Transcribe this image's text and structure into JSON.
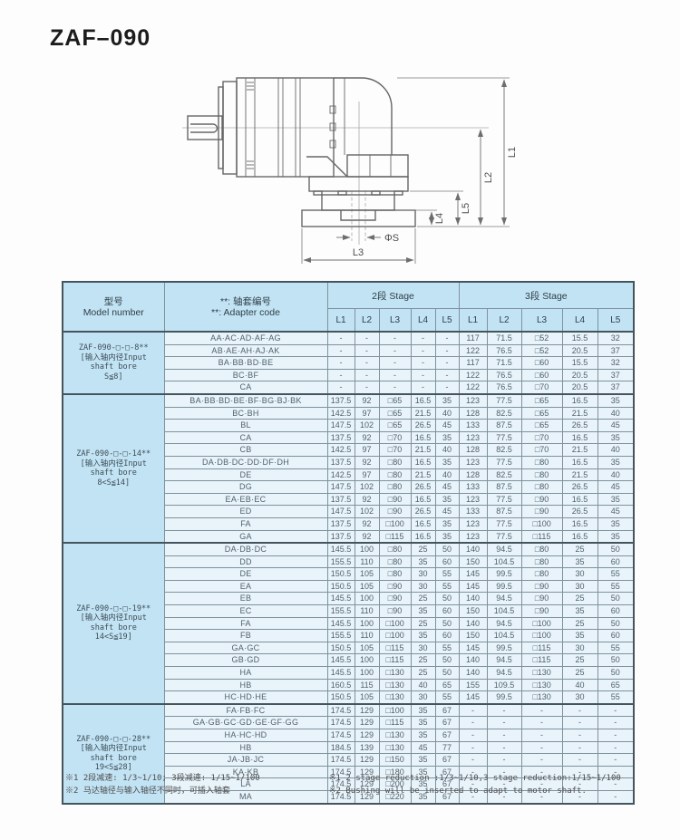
{
  "page": {
    "title": "ZAF–090"
  },
  "drawing": {
    "labels": {
      "l1": "L1",
      "l2": "L2",
      "l3": "L3",
      "l4": "L4",
      "l5": "L5",
      "phi_s": "ΦS"
    }
  },
  "table": {
    "headers": {
      "model_cn": "型号",
      "model_en": "Model number",
      "adapter_cn": "**: 轴套编号",
      "adapter_en": "**: Adapter code",
      "stage2": "2段 Stage",
      "stage3": "3段 Stage",
      "cols": [
        "L1",
        "L2",
        "L3",
        "L4",
        "L5"
      ]
    },
    "groups": [
      {
        "model_lines": [
          "ZAF-090-□-□-8**",
          "[输入轴内径Input",
          "shaft bore",
          "S≦8]"
        ],
        "rows": [
          {
            "code": "AA·AC·AD·AF·AG",
            "s2": [
              "-",
              "-",
              "-",
              "-",
              "-"
            ],
            "s3": [
              "117",
              "71.5",
              "□52",
              "15.5",
              "32"
            ]
          },
          {
            "code": "AB·AE·AH·AJ·AK",
            "s2": [
              "-",
              "-",
              "-",
              "-",
              "-"
            ],
            "s3": [
              "122",
              "76.5",
              "□52",
              "20.5",
              "37"
            ]
          },
          {
            "code": "BA·BB·BD·BE",
            "s2": [
              "-",
              "-",
              "-",
              "-",
              "-"
            ],
            "s3": [
              "117",
              "71.5",
              "□60",
              "15.5",
              "32"
            ]
          },
          {
            "code": "BC·BF",
            "s2": [
              "-",
              "-",
              "-",
              "-",
              "-"
            ],
            "s3": [
              "122",
              "76.5",
              "□60",
              "20.5",
              "37"
            ]
          },
          {
            "code": "CA",
            "s2": [
              "-",
              "-",
              "-",
              "-",
              "-"
            ],
            "s3": [
              "122",
              "76.5",
              "□70",
              "20.5",
              "37"
            ]
          }
        ]
      },
      {
        "model_lines": [
          "ZAF-090-□-□-14**",
          "[输入轴内径Input",
          "shaft bore",
          "8<S≦14]"
        ],
        "rows": [
          {
            "code": "BA·BB·BD·BE·BF·BG·BJ·BK",
            "s2": [
              "137.5",
              "92",
              "□65",
              "16.5",
              "35"
            ],
            "s3": [
              "123",
              "77.5",
              "□65",
              "16.5",
              "35"
            ]
          },
          {
            "code": "BC·BH",
            "s2": [
              "142.5",
              "97",
              "□65",
              "21.5",
              "40"
            ],
            "s3": [
              "128",
              "82.5",
              "□65",
              "21.5",
              "40"
            ]
          },
          {
            "code": "BL",
            "s2": [
              "147.5",
              "102",
              "□65",
              "26.5",
              "45"
            ],
            "s3": [
              "133",
              "87.5",
              "□65",
              "26.5",
              "45"
            ]
          },
          {
            "code": "CA",
            "s2": [
              "137.5",
              "92",
              "□70",
              "16.5",
              "35"
            ],
            "s3": [
              "123",
              "77.5",
              "□70",
              "16.5",
              "35"
            ]
          },
          {
            "code": "CB",
            "s2": [
              "142.5",
              "97",
              "□70",
              "21.5",
              "40"
            ],
            "s3": [
              "128",
              "82.5",
              "□70",
              "21.5",
              "40"
            ]
          },
          {
            "code": "DA·DB·DC·DD·DF·DH",
            "s2": [
              "137.5",
              "92",
              "□80",
              "16.5",
              "35"
            ],
            "s3": [
              "123",
              "77.5",
              "□80",
              "16.5",
              "35"
            ]
          },
          {
            "code": "DE",
            "s2": [
              "142.5",
              "97",
              "□80",
              "21.5",
              "40"
            ],
            "s3": [
              "128",
              "82.5",
              "□80",
              "21.5",
              "40"
            ]
          },
          {
            "code": "DG",
            "s2": [
              "147.5",
              "102",
              "□80",
              "26.5",
              "45"
            ],
            "s3": [
              "133",
              "87.5",
              "□80",
              "26.5",
              "45"
            ]
          },
          {
            "code": "EA·EB·EC",
            "s2": [
              "137.5",
              "92",
              "□90",
              "16.5",
              "35"
            ],
            "s3": [
              "123",
              "77.5",
              "□90",
              "16.5",
              "35"
            ]
          },
          {
            "code": "ED",
            "s2": [
              "147.5",
              "102",
              "□90",
              "26.5",
              "45"
            ],
            "s3": [
              "133",
              "87.5",
              "□90",
              "26.5",
              "45"
            ]
          },
          {
            "code": "FA",
            "s2": [
              "137.5",
              "92",
              "□100",
              "16.5",
              "35"
            ],
            "s3": [
              "123",
              "77.5",
              "□100",
              "16.5",
              "35"
            ]
          },
          {
            "code": "GA",
            "s2": [
              "137.5",
              "92",
              "□115",
              "16.5",
              "35"
            ],
            "s3": [
              "123",
              "77.5",
              "□115",
              "16.5",
              "35"
            ]
          }
        ]
      },
      {
        "model_lines": [
          "ZAF-090-□-□-19**",
          "[输入轴内径Input",
          "shaft bore",
          "14<S≦19]"
        ],
        "rows": [
          {
            "code": "DA·DB·DC",
            "s2": [
              "145.5",
              "100",
              "□80",
              "25",
              "50"
            ],
            "s3": [
              "140",
              "94.5",
              "□80",
              "25",
              "50"
            ]
          },
          {
            "code": "DD",
            "s2": [
              "155.5",
              "110",
              "□80",
              "35",
              "60"
            ],
            "s3": [
              "150",
              "104.5",
              "□80",
              "35",
              "60"
            ]
          },
          {
            "code": "DE",
            "s2": [
              "150.5",
              "105",
              "□80",
              "30",
              "55"
            ],
            "s3": [
              "145",
              "99.5",
              "□80",
              "30",
              "55"
            ]
          },
          {
            "code": "EA",
            "s2": [
              "150.5",
              "105",
              "□90",
              "30",
              "55"
            ],
            "s3": [
              "145",
              "99.5",
              "□90",
              "30",
              "55"
            ]
          },
          {
            "code": "EB",
            "s2": [
              "145.5",
              "100",
              "□90",
              "25",
              "50"
            ],
            "s3": [
              "140",
              "94.5",
              "□90",
              "25",
              "50"
            ]
          },
          {
            "code": "EC",
            "s2": [
              "155.5",
              "110",
              "□90",
              "35",
              "60"
            ],
            "s3": [
              "150",
              "104.5",
              "□90",
              "35",
              "60"
            ]
          },
          {
            "code": "FA",
            "s2": [
              "145.5",
              "100",
              "□100",
              "25",
              "50"
            ],
            "s3": [
              "140",
              "94.5",
              "□100",
              "25",
              "50"
            ]
          },
          {
            "code": "FB",
            "s2": [
              "155.5",
              "110",
              "□100",
              "35",
              "60"
            ],
            "s3": [
              "150",
              "104.5",
              "□100",
              "35",
              "60"
            ]
          },
          {
            "code": "GA·GC",
            "s2": [
              "150.5",
              "105",
              "□115",
              "30",
              "55"
            ],
            "s3": [
              "145",
              "99.5",
              "□115",
              "30",
              "55"
            ]
          },
          {
            "code": "GB·GD",
            "s2": [
              "145.5",
              "100",
              "□115",
              "25",
              "50"
            ],
            "s3": [
              "140",
              "94.5",
              "□115",
              "25",
              "50"
            ]
          },
          {
            "code": "HA",
            "s2": [
              "145.5",
              "100",
              "□130",
              "25",
              "50"
            ],
            "s3": [
              "140",
              "94.5",
              "□130",
              "25",
              "50"
            ]
          },
          {
            "code": "HB",
            "s2": [
              "160.5",
              "115",
              "□130",
              "40",
              "65"
            ],
            "s3": [
              "155",
              "109.5",
              "□130",
              "40",
              "65"
            ]
          },
          {
            "code": "HC·HD·HE",
            "s2": [
              "150.5",
              "105",
              "□130",
              "30",
              "55"
            ],
            "s3": [
              "145",
              "99.5",
              "□130",
              "30",
              "55"
            ]
          }
        ]
      },
      {
        "model_lines": [
          "ZAF-090-□-□-28**",
          "[输入轴内径Input",
          "shaft bore",
          "19<S≦28]"
        ],
        "rows": [
          {
            "code": "FA·FB·FC",
            "s2": [
              "174.5",
              "129",
              "□100",
              "35",
              "67"
            ],
            "s3": [
              "-",
              "-",
              "-",
              "-",
              "-"
            ]
          },
          {
            "code": "GA·GB·GC·GD·GE·GF·GG",
            "s2": [
              "174.5",
              "129",
              "□115",
              "35",
              "67"
            ],
            "s3": [
              "-",
              "-",
              "-",
              "-",
              "-"
            ]
          },
          {
            "code": "HA·HC·HD",
            "s2": [
              "174.5",
              "129",
              "□130",
              "35",
              "67"
            ],
            "s3": [
              "-",
              "-",
              "-",
              "-",
              "-"
            ]
          },
          {
            "code": "HB",
            "s2": [
              "184.5",
              "139",
              "□130",
              "45",
              "77"
            ],
            "s3": [
              "-",
              "-",
              "-",
              "-",
              "-"
            ]
          },
          {
            "code": "JA·JB·JC",
            "s2": [
              "174.5",
              "129",
              "□150",
              "35",
              "67"
            ],
            "s3": [
              "-",
              "-",
              "-",
              "-",
              "-"
            ]
          },
          {
            "code": "KA·KB",
            "s2": [
              "174.5",
              "129",
              "□180",
              "35",
              "67"
            ],
            "s3": [
              "-",
              "-",
              "-",
              "-",
              "-"
            ]
          },
          {
            "code": "LA",
            "s2": [
              "174.5",
              "129",
              "□200",
              "35",
              "67"
            ],
            "s3": [
              "-",
              "-",
              "-",
              "-",
              "-"
            ]
          },
          {
            "code": "MA",
            "s2": [
              "174.5",
              "129",
              "□220",
              "35",
              "67"
            ],
            "s3": [
              "-",
              "-",
              "-",
              "-",
              "-"
            ]
          }
        ]
      }
    ]
  },
  "notes": {
    "cn1": "※1 2段减速: 1/3~1/10; 3段减速: 1/15~1/100",
    "cn2": "※2 马达轴径与输入轴径不同时，可插入轴套",
    "en1": "※1 2 stage reduction :1/3~1/10,3 stage reduction:1/15~1/100",
    "en2": "※2 Bushing will be inserted to adapt to motor shaft."
  }
}
